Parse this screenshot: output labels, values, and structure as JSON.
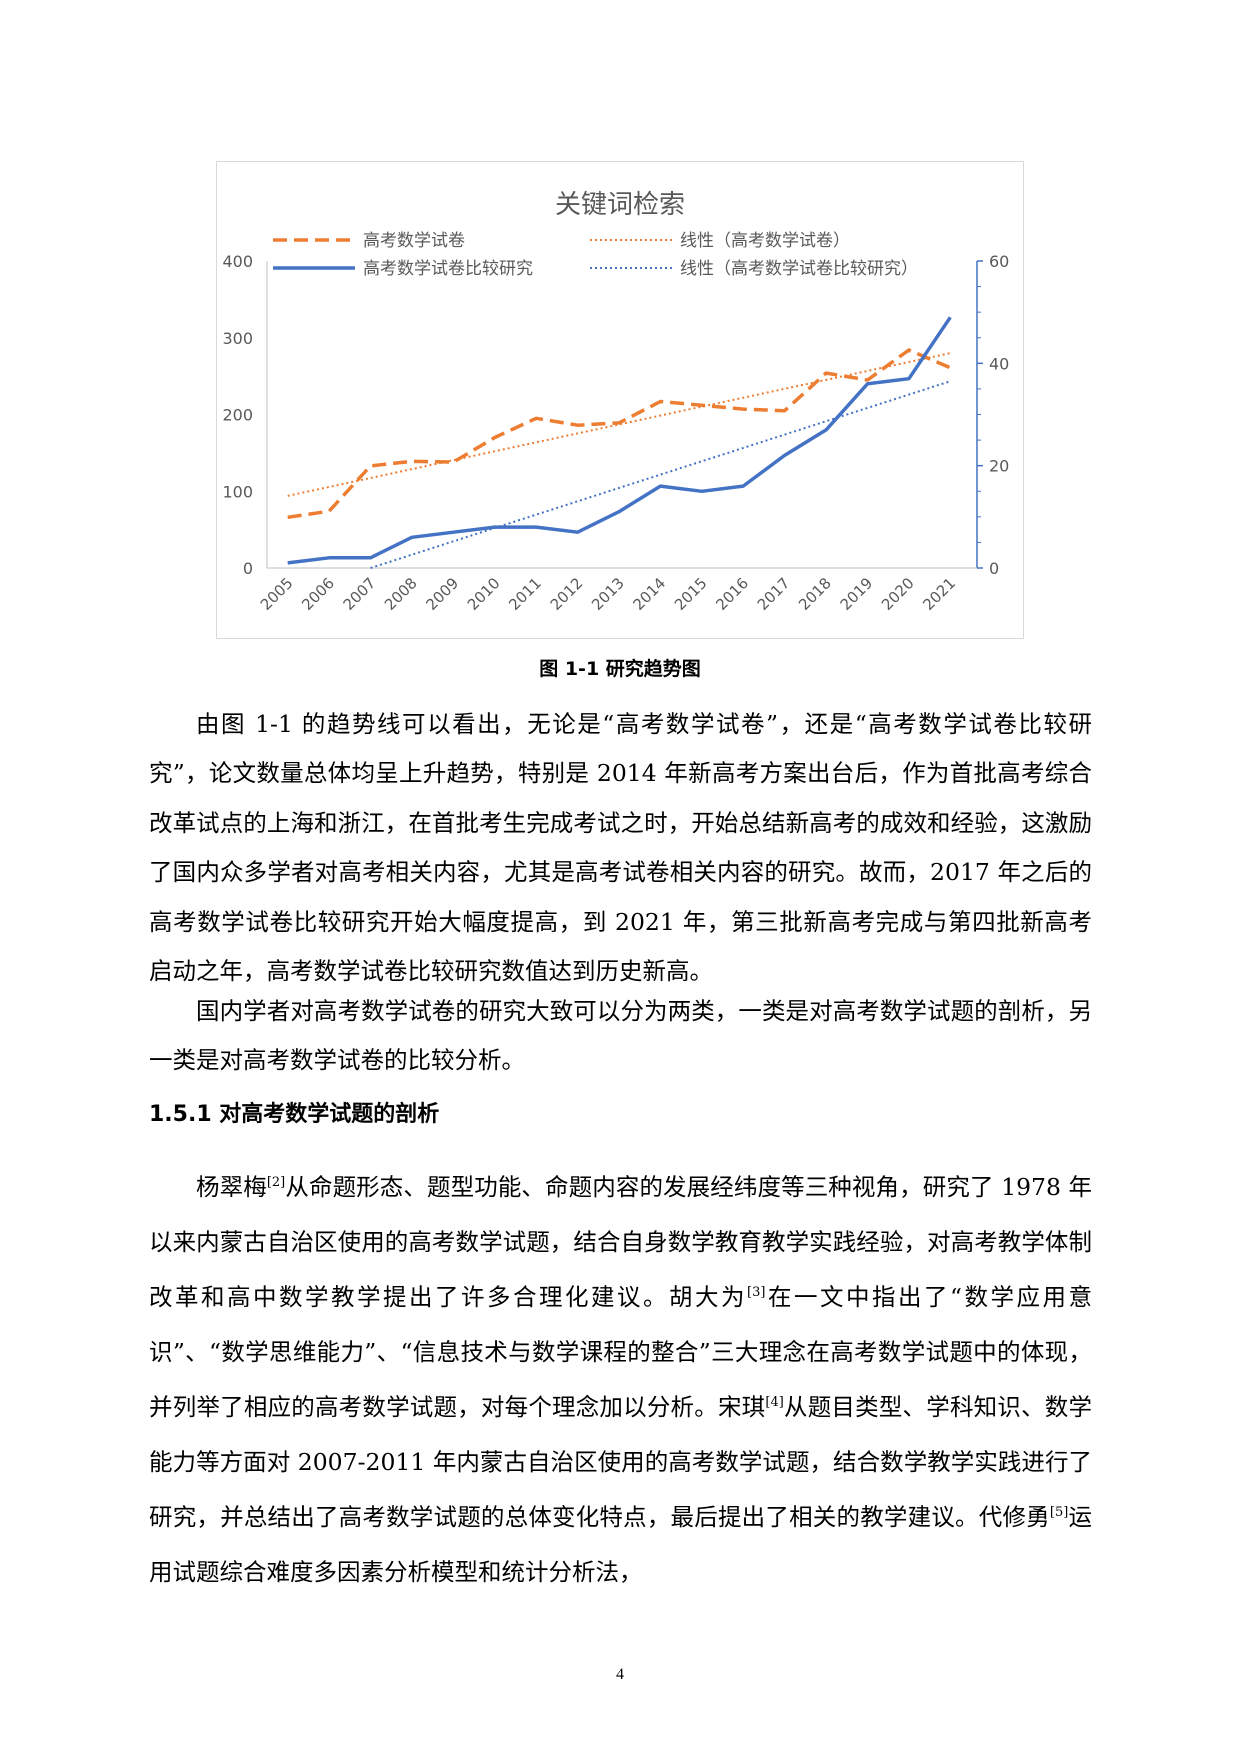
{
  "chart_data": {
    "type": "line",
    "title": "关键词检索",
    "categories": [
      "2005",
      "2006",
      "2007",
      "2008",
      "2009",
      "2010",
      "2011",
      "2012",
      "2013",
      "2014",
      "2015",
      "2016",
      "2017",
      "2018",
      "2019",
      "2020",
      "2021"
    ],
    "series": [
      {
        "name": "高考数学试卷",
        "axis": "left",
        "style": "dashed",
        "color": "#ED7D31",
        "values": [
          66,
          74,
          133,
          139,
          138,
          170,
          195,
          186,
          189,
          217,
          212,
          207,
          205,
          254,
          245,
          284,
          261
        ]
      },
      {
        "name": "高考数学试卷比较研究",
        "axis": "right",
        "style": "solid",
        "color": "#4472C4",
        "values": [
          1,
          2,
          2,
          6,
          7,
          8,
          8,
          7,
          11,
          16,
          15,
          16,
          22,
          27,
          36,
          37,
          49
        ]
      }
    ],
    "trendlines": [
      {
        "name": "线性（高考数学试卷）",
        "color": "#ED7D31",
        "style": "dotted",
        "start": 94,
        "end": 280,
        "axis": "left",
        "from_index": 0
      },
      {
        "name": "线性（高考数学试卷比较研究）",
        "color": "#4472C4",
        "style": "dotted",
        "start": 0,
        "end": 36.5,
        "axis": "right",
        "from_index": 2
      }
    ],
    "y_left": {
      "min": 0,
      "max": 400,
      "ticks": [
        "0",
        "100",
        "200",
        "300",
        "400"
      ]
    },
    "y_right": {
      "min": 0,
      "max": 60,
      "ticks": [
        "0",
        "20",
        "40",
        "60"
      ]
    },
    "legend_position": "top",
    "grid": false
  },
  "caption": "图 1-1 研究趋势图",
  "paragraph_1": "由图 1-1 的趋势线可以看出，无论是“高考数学试卷”，还是“高考数学试卷比较研究”，论文数量总体均呈上升趋势，特别是 2014 年新高考方案出台后，作为首批高考综合改革试点的上海和浙江，在首批考生完成考试之时，开始总结新高考的成效和经验，这激励了国内众多学者对高考相关内容，尤其是高考试卷相关内容的研究。故而，2017 年之后的高考数学试卷比较研究开始大幅度提高，到 2021 年，第三批新高考完成与第四批新高考启动之年，高考数学试卷比较研究数值达到历史新高。",
  "paragraph_2": "国内学者对高考数学试卷的研究大致可以分为两类，一类是对高考数学试题的剖析，另一类是对高考数学试卷的比较分析。",
  "section_heading": "1.5.1  对高考数学试题的剖析",
  "paragraph_3": {
    "s1": "杨翠梅",
    "r1": "[2]",
    "s2": "从命题形态、题型功能、命题内容的发展经纬度等三种视角，研究了 1978 年以来内蒙古自治区使用的高考数学试题，结合自身数学教育教学实践经验，对高考教学体制改革和高中数学教学提出了许多合理化建议。胡大为",
    "r2": "[3]",
    "s3": "在一文中指出了“数学应用意识”、“数学思维能力”、“信息技术与数学课程的整合”三大理念在高考数学试题中的体现，并列举了相应的高考数学试题，对每个理念加以分析。宋琪",
    "r3": "[4]",
    "s4": "从题目类型、学科知识、数学能力等方面对 2007-2011 年内蒙古自治区使用的高考数学试题，结合数学教学实践进行了研究，并总结出了高考数学试题的总体变化特点，最后提出了相关的教学建议。代修勇",
    "r4": "[5]",
    "s5": "运用试题综合难度多因素分析模型和统计分析法，"
  },
  "page_number": "4"
}
